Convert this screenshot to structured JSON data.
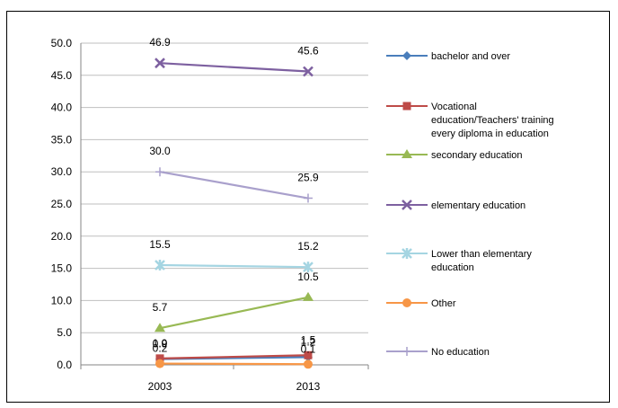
{
  "chart_data": {
    "type": "line",
    "title": "",
    "xlabel": "",
    "ylabel": "",
    "categories": [
      "2003",
      "2013"
    ],
    "ylim": [
      0,
      50
    ],
    "yticks": [
      "0.0",
      "5.0",
      "10.0",
      "15.0",
      "20.0",
      "25.0",
      "30.0",
      "35.0",
      "40.0",
      "45.0",
      "50.0"
    ],
    "grid": "horizontal",
    "legend": "right",
    "series": [
      {
        "name": "bachelor and over",
        "values": [
          0.9,
          1.2
        ],
        "labels": [
          "0.9",
          "1.2"
        ],
        "color": "#4A7EBB",
        "marker": "diamond"
      },
      {
        "name": "Vocational education/Teachers' training every diploma in education",
        "values": [
          1.0,
          1.5
        ],
        "labels": [
          "1.0",
          "1.5"
        ],
        "color": "#BE4B48",
        "marker": "square"
      },
      {
        "name": "secondary education",
        "values": [
          5.7,
          10.5
        ],
        "labels": [
          "5.7",
          "10.5"
        ],
        "color": "#98B954",
        "marker": "triangle"
      },
      {
        "name": "elementary education",
        "values": [
          46.9,
          45.6
        ],
        "labels": [
          "46.9",
          "45.6"
        ],
        "color": "#7D60A0",
        "marker": "x"
      },
      {
        "name": "Lower than elementary education",
        "values": [
          15.5,
          15.2
        ],
        "labels": [
          "15.5",
          "15.2"
        ],
        "color": "#A5D5E2",
        "marker": "star"
      },
      {
        "name": "Other",
        "values": [
          0.2,
          0.1
        ],
        "labels": [
          "0.2",
          "0.1"
        ],
        "color": "#F79646",
        "marker": "circle"
      },
      {
        "name": "No education",
        "values": [
          30.0,
          25.9
        ],
        "labels": [
          "30.0",
          "25.9"
        ],
        "color": "#A9A0CC",
        "marker": "plus"
      }
    ]
  }
}
